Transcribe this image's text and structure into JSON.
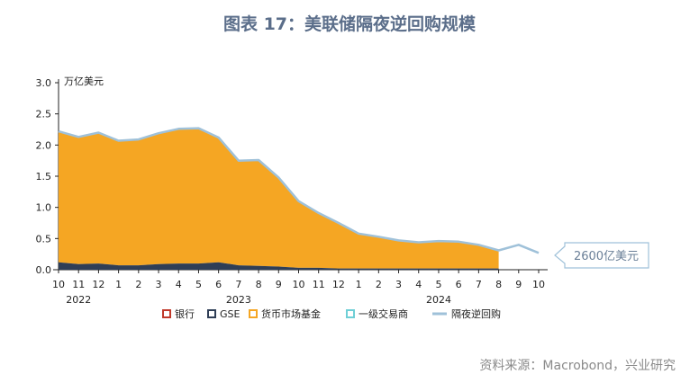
{
  "figure_title": "图表 17：美联储隔夜逆回购规模",
  "source": "资料来源：Macrobond，兴业研究",
  "callout": "2600亿美元",
  "colors": {
    "bank": "#c0392b",
    "gse": "#2f3e56",
    "mmf": "#f5a623",
    "dealer": "#6fcfd6",
    "total_line": "#9fc1d9",
    "title": "#5b6e8a"
  },
  "chart_data": {
    "type": "area",
    "ylabel": "万亿美元",
    "ylim": [
      0,
      3.0
    ],
    "yticks": [
      "0.0",
      "0.5",
      "1.0",
      "1.5",
      "2.0",
      "2.5",
      "3.0"
    ],
    "xticks": [
      "10",
      "11",
      "12",
      "1",
      "2",
      "3",
      "4",
      "5",
      "6",
      "7",
      "8",
      "9",
      "10",
      "11",
      "12",
      "1",
      "2",
      "3",
      "4",
      "5",
      "6",
      "7",
      "8",
      "9",
      "10"
    ],
    "years": [
      "2022",
      "2023",
      "2024"
    ],
    "legend": [
      "银行",
      "GSE",
      "货币市场基金",
      "一级交易商",
      "隔夜逆回购"
    ],
    "x": [
      "2022-10",
      "2022-11",
      "2022-12",
      "2023-01",
      "2023-02",
      "2023-03",
      "2023-04",
      "2023-05",
      "2023-06",
      "2023-07",
      "2023-08",
      "2023-09",
      "2023-10",
      "2023-11",
      "2023-12",
      "2024-01",
      "2024-02",
      "2024-03",
      "2024-04",
      "2024-05",
      "2024-06",
      "2024-07",
      "2024-08",
      "2024-09",
      "2024-10"
    ],
    "series": [
      {
        "name": "银行",
        "values": [
          0,
          0,
          0,
          0,
          0,
          0,
          0,
          0,
          0,
          0,
          0,
          0,
          0,
          0,
          0,
          0,
          0,
          0,
          0,
          0,
          0,
          0,
          0,
          null,
          null
        ]
      },
      {
        "name": "GSE",
        "values": [
          0.12,
          0.09,
          0.1,
          0.07,
          0.07,
          0.09,
          0.1,
          0.1,
          0.12,
          0.07,
          0.06,
          0.05,
          0.03,
          0.03,
          0.02,
          0.02,
          0.02,
          0.02,
          0.02,
          0.02,
          0.02,
          0.02,
          0.02,
          null,
          null
        ]
      },
      {
        "name": "货币市场基金",
        "values": [
          2.1,
          2.04,
          2.1,
          2.0,
          2.02,
          2.1,
          2.16,
          2.17,
          2.0,
          1.68,
          1.7,
          1.43,
          1.07,
          0.88,
          0.73,
          0.56,
          0.51,
          0.45,
          0.42,
          0.44,
          0.43,
          0.38,
          0.29,
          null,
          null
        ]
      },
      {
        "name": "一级交易商",
        "values": [
          0,
          0,
          0,
          0,
          0,
          0,
          0,
          0,
          0,
          0,
          0,
          0,
          0,
          0,
          0,
          0,
          0,
          0,
          0,
          0,
          0,
          0,
          0,
          null,
          null
        ]
      },
      {
        "name": "隔夜逆回购",
        "values": [
          2.22,
          2.13,
          2.2,
          2.07,
          2.09,
          2.19,
          2.26,
          2.27,
          2.12,
          1.75,
          1.76,
          1.48,
          1.1,
          0.91,
          0.75,
          0.58,
          0.53,
          0.47,
          0.44,
          0.46,
          0.45,
          0.4,
          0.31,
          0.4,
          0.27
        ]
      }
    ]
  }
}
